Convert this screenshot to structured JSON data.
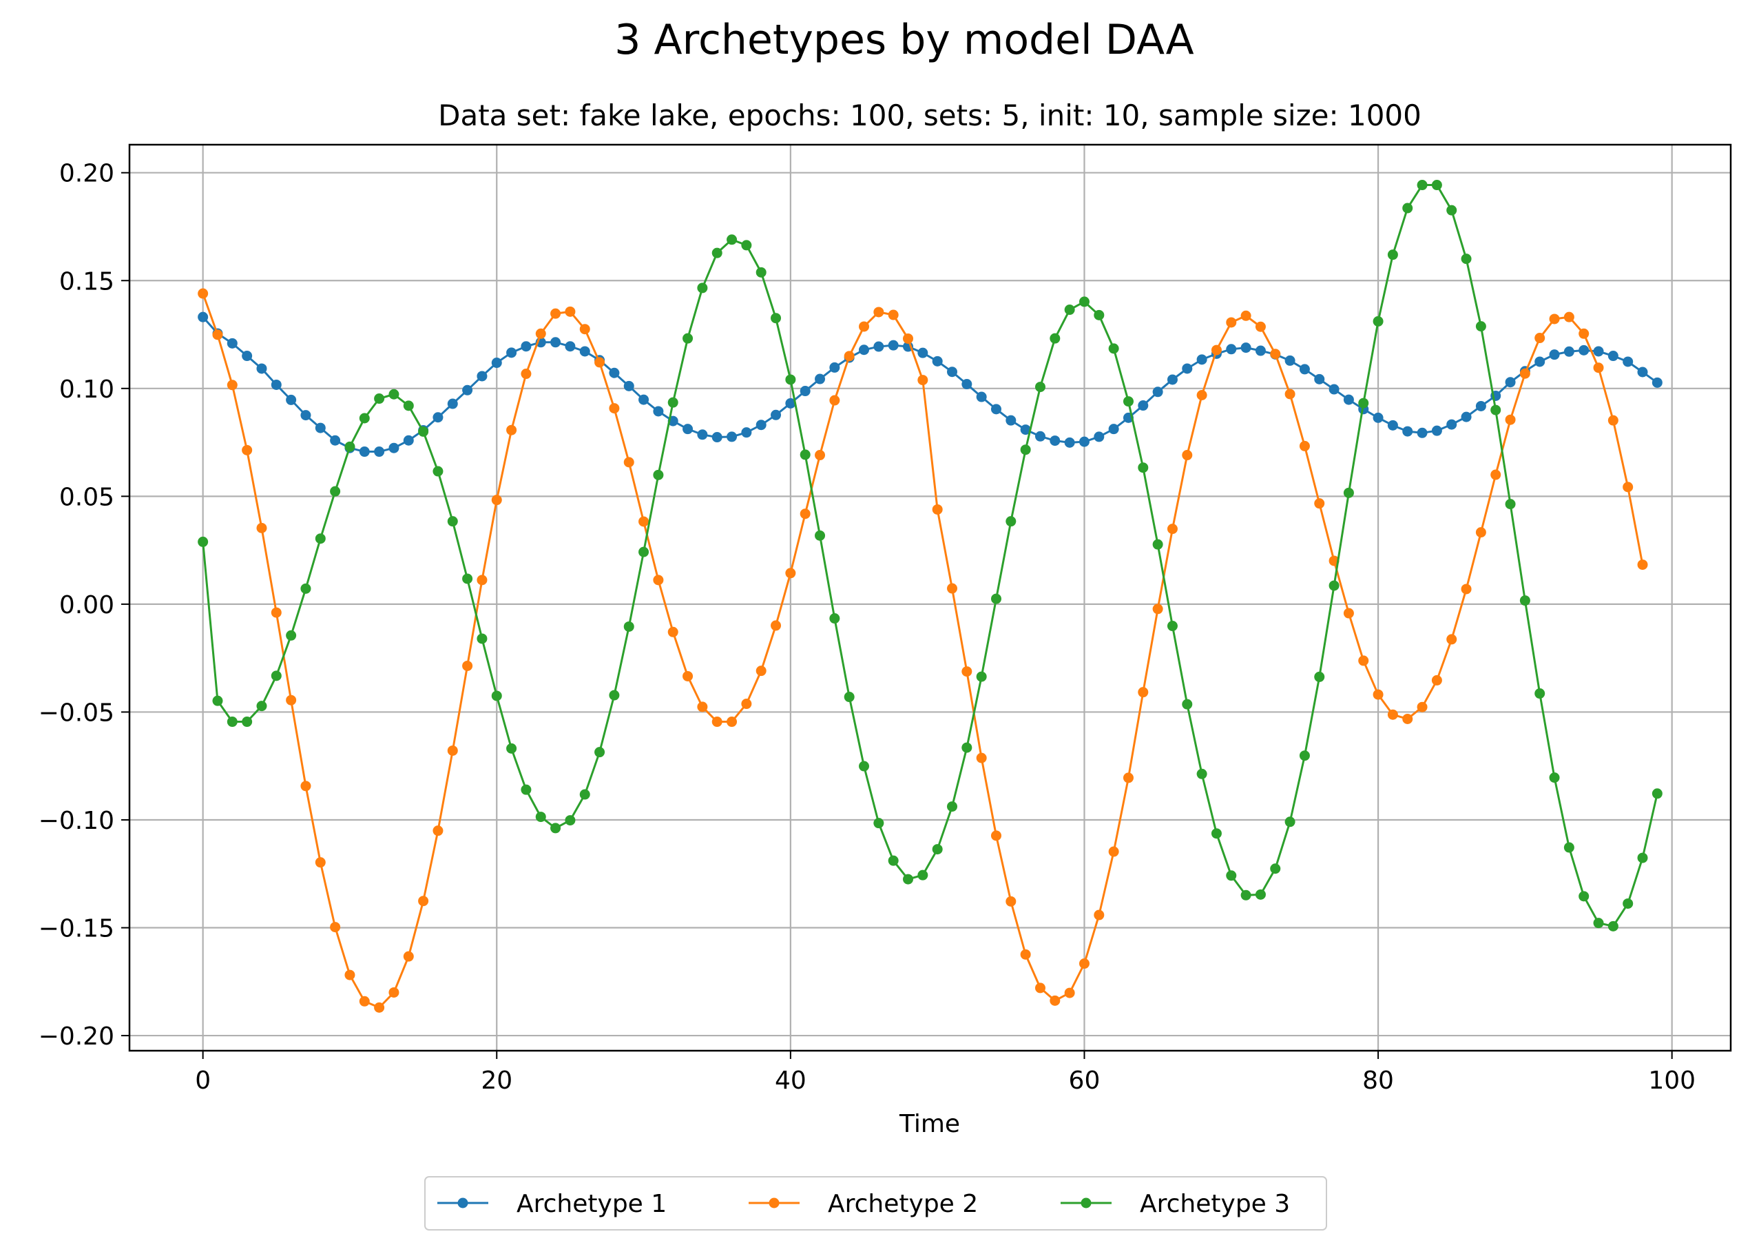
{
  "chart_data": {
    "type": "line",
    "title": "3 Archetypes by model DAA",
    "subtitle": "Data set: fake lake, epochs: 100, sets: 5, init: 10, sample size: 1000",
    "xlabel": "Time",
    "ylabel": "",
    "xlim": [
      -5,
      104
    ],
    "ylim": [
      -0.207,
      0.213
    ],
    "xticks": [
      0,
      20,
      40,
      60,
      80,
      100
    ],
    "xtick_labels": [
      "0",
      "20",
      "40",
      "60",
      "80",
      "100"
    ],
    "yticks": [
      -0.2,
      -0.15,
      -0.1,
      -0.05,
      0.0,
      0.05,
      0.1,
      0.15,
      0.2
    ],
    "ytick_labels": [
      "−0.20",
      "−0.15",
      "−0.10",
      "−0.05",
      "0.00",
      "0.05",
      "0.10",
      "0.15",
      "0.20"
    ],
    "grid": true,
    "legend_position": "below",
    "series": [
      {
        "name": "Archetype 1",
        "color": "#1f77b4",
        "values": [
          0.1331,
          0.1255,
          0.1209,
          0.1151,
          0.1092,
          0.1017,
          0.0947,
          0.0876,
          0.0817,
          0.0759,
          0.0724,
          0.0707,
          0.0707,
          0.0724,
          0.0759,
          0.0806,
          0.0866,
          0.0929,
          0.0992,
          0.1057,
          0.1119,
          0.1166,
          0.1195,
          0.1214,
          0.1214,
          0.1195,
          0.1172,
          0.1131,
          0.1072,
          0.1011,
          0.0948,
          0.0894,
          0.0849,
          0.0812,
          0.0786,
          0.0774,
          0.0776,
          0.0796,
          0.0831,
          0.0877,
          0.0931,
          0.0988,
          0.1044,
          0.1097,
          0.1143,
          0.1179,
          0.1194,
          0.12,
          0.1194,
          0.1165,
          0.1126,
          0.1077,
          0.102,
          0.0961,
          0.0904,
          0.0852,
          0.0809,
          0.0778,
          0.0758,
          0.0749,
          0.0753,
          0.0776,
          0.0812,
          0.0864,
          0.0921,
          0.0984,
          0.1041,
          0.1092,
          0.1134,
          0.1161,
          0.1182,
          0.1189,
          0.1175,
          0.1158,
          0.1129,
          0.1089,
          0.1043,
          0.0996,
          0.0948,
          0.0904,
          0.0864,
          0.0829,
          0.0801,
          0.0794,
          0.0804,
          0.0833,
          0.0868,
          0.0918,
          0.0966,
          0.1029,
          0.108,
          0.1124,
          0.1157,
          0.1171,
          0.1177,
          0.1172,
          0.1151,
          0.1124,
          0.1076,
          0.1027
        ]
      },
      {
        "name": "Archetype 2",
        "color": "#ff7f0e",
        "values": [
          0.144,
          0.1249,
          0.1016,
          0.0714,
          0.0353,
          -0.0039,
          -0.0445,
          -0.0843,
          -0.1197,
          -0.1497,
          -0.1719,
          -0.1841,
          -0.187,
          -0.18,
          -0.1633,
          -0.1376,
          -0.105,
          -0.0679,
          -0.0286,
          0.0112,
          0.0483,
          0.0807,
          0.1068,
          0.1254,
          0.1347,
          0.1356,
          0.1275,
          0.1121,
          0.0908,
          0.0658,
          0.0383,
          0.0112,
          -0.0129,
          -0.0334,
          -0.0476,
          -0.0545,
          -0.0545,
          -0.0462,
          -0.0309,
          -0.0099,
          0.0144,
          0.0419,
          0.0691,
          0.0945,
          0.115,
          0.1287,
          0.1354,
          0.1341,
          0.1231,
          0.1039,
          0.0439,
          0.0073,
          -0.0312,
          -0.0713,
          -0.1073,
          -0.1378,
          -0.1624,
          -0.1779,
          -0.1838,
          -0.1802,
          -0.1666,
          -0.1441,
          -0.1147,
          -0.0805,
          -0.0408,
          -0.0022,
          0.0349,
          0.0691,
          0.0969,
          0.1178,
          0.1306,
          0.1337,
          0.1286,
          0.116,
          0.0974,
          0.0733,
          0.0467,
          0.0201,
          -0.0042,
          -0.0262,
          -0.0419,
          -0.0512,
          -0.0532,
          -0.0477,
          -0.0353,
          -0.0163,
          0.007,
          0.0333,
          0.06,
          0.0855,
          0.1069,
          0.1234,
          0.1322,
          0.1331,
          0.1254,
          0.1096,
          0.0852,
          0.0543,
          0.0183
        ]
      },
      {
        "name": "Archetype 3",
        "color": "#2ca02c",
        "values": [
          0.0289,
          -0.0448,
          -0.0545,
          -0.0545,
          -0.0472,
          -0.0332,
          -0.0145,
          0.0072,
          0.0304,
          0.0523,
          0.073,
          0.0862,
          0.0953,
          0.0973,
          0.092,
          0.08,
          0.0616,
          0.0384,
          0.0118,
          -0.016,
          -0.0425,
          -0.0669,
          -0.086,
          -0.0986,
          -0.1038,
          -0.1002,
          -0.0882,
          -0.0686,
          -0.0422,
          -0.0104,
          0.0242,
          0.0599,
          0.0935,
          0.1232,
          0.1466,
          0.1628,
          0.169,
          0.1664,
          0.1538,
          0.1326,
          0.1041,
          0.0693,
          0.0318,
          -0.0066,
          -0.043,
          -0.0751,
          -0.1015,
          -0.1189,
          -0.1275,
          -0.1256,
          -0.1136,
          -0.0938,
          -0.0665,
          -0.0336,
          0.0025,
          0.0384,
          0.0716,
          0.1007,
          0.1232,
          0.1365,
          0.1402,
          0.134,
          0.1185,
          0.094,
          0.0633,
          0.0277,
          -0.0101,
          -0.0464,
          -0.0787,
          -0.1063,
          -0.1258,
          -0.1349,
          -0.1346,
          -0.1226,
          -0.1009,
          -0.0702,
          -0.0337,
          0.0086,
          0.0516,
          0.0932,
          0.1311,
          0.162,
          0.1836,
          0.1943,
          0.1943,
          0.1826,
          0.1601,
          0.1288,
          0.09,
          0.0464,
          0.0017,
          -0.0414,
          -0.0804,
          -0.1128,
          -0.1354,
          -0.1478,
          -0.1493,
          -0.1388,
          -0.1176,
          -0.0878
        ]
      }
    ]
  }
}
